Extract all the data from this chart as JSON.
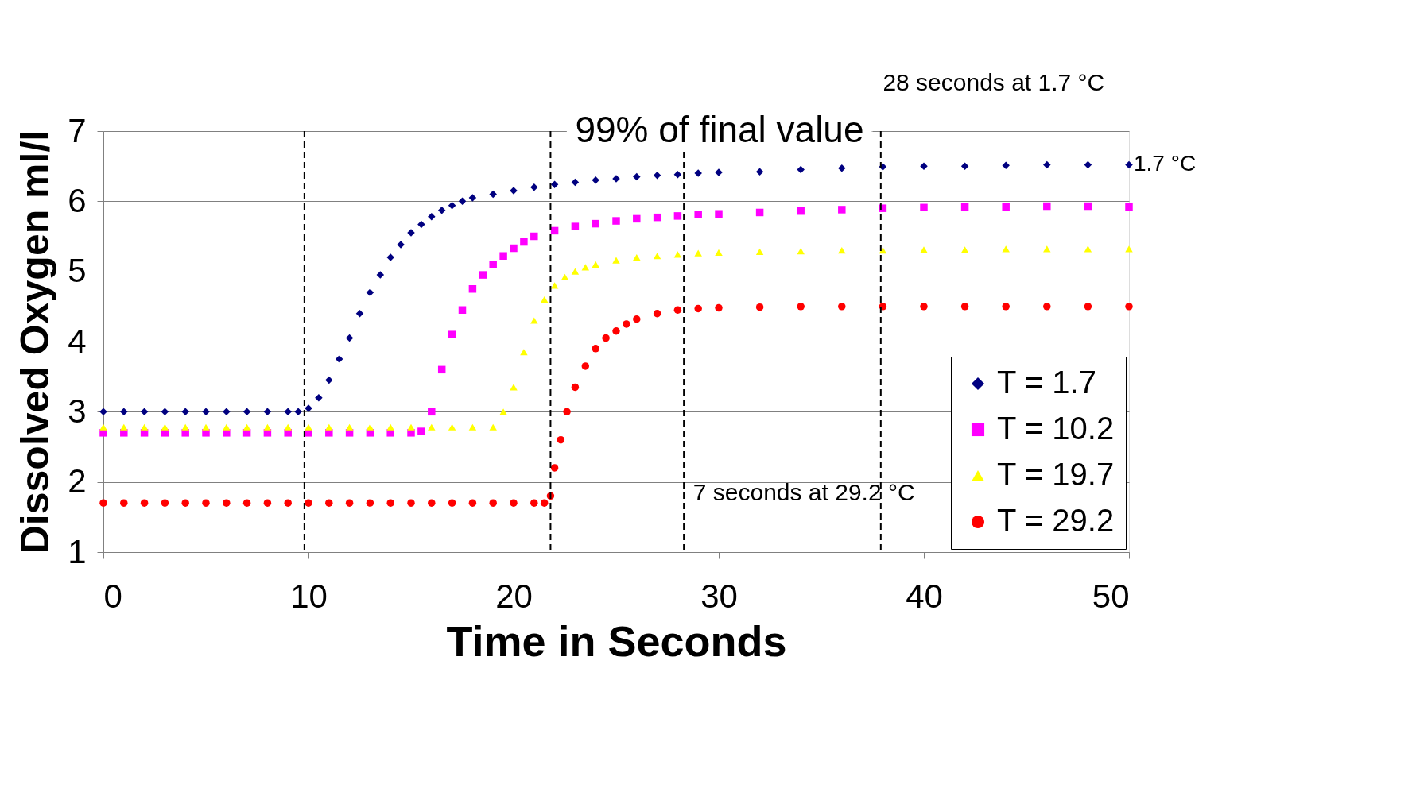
{
  "chart_data": {
    "type": "scatter",
    "xlabel": "Time in Seconds",
    "ylabel": "Dissolved Oxygen ml/l",
    "xlim": [
      0,
      50
    ],
    "xticks": [
      0,
      10,
      20,
      30,
      40,
      50
    ],
    "ylim": [
      1,
      7
    ],
    "yticks": [
      1,
      2,
      3,
      4,
      5,
      6,
      7
    ],
    "grid": "y",
    "legend": "bottom right",
    "series": [
      {
        "name": "T = 1.7",
        "color": "#000080",
        "marker": "diamond",
        "x": [
          0,
          1,
          2,
          3,
          4,
          5,
          6,
          7,
          8,
          9,
          9.5,
          10,
          10.5,
          11,
          11.5,
          12,
          12.5,
          13,
          13.5,
          14,
          14.5,
          15,
          15.5,
          16,
          16.5,
          17,
          17.5,
          18,
          19,
          20,
          21,
          22,
          23,
          24,
          25,
          26,
          27,
          28,
          29,
          30,
          32,
          34,
          36,
          38,
          40,
          42,
          44,
          46,
          48,
          50
        ],
        "values": [
          3.0,
          3.0,
          3.0,
          3.0,
          3.0,
          3.0,
          3.0,
          3.0,
          3.0,
          3.0,
          3.0,
          3.05,
          3.2,
          3.45,
          3.75,
          4.05,
          4.4,
          4.7,
          4.95,
          5.2,
          5.38,
          5.55,
          5.67,
          5.78,
          5.87,
          5.94,
          6.0,
          6.05,
          6.1,
          6.15,
          6.2,
          6.24,
          6.27,
          6.3,
          6.32,
          6.35,
          6.37,
          6.38,
          6.4,
          6.41,
          6.42,
          6.45,
          6.47,
          6.49,
          6.5,
          6.5,
          6.51,
          6.52,
          6.52,
          6.52
        ]
      },
      {
        "name": "T = 10.2",
        "color": "#ff00ff",
        "marker": "square",
        "x": [
          0,
          1,
          2,
          3,
          4,
          5,
          6,
          7,
          8,
          9,
          10,
          11,
          12,
          13,
          14,
          15,
          15.5,
          16,
          16.5,
          17,
          17.5,
          18,
          18.5,
          19,
          19.5,
          20,
          20.5,
          21,
          22,
          23,
          24,
          25,
          26,
          27,
          28,
          29,
          30,
          32,
          34,
          36,
          38,
          40,
          42,
          44,
          46,
          48,
          50
        ],
        "values": [
          2.7,
          2.7,
          2.7,
          2.7,
          2.7,
          2.7,
          2.7,
          2.7,
          2.7,
          2.7,
          2.7,
          2.7,
          2.7,
          2.7,
          2.7,
          2.7,
          2.72,
          3.0,
          3.6,
          4.1,
          4.45,
          4.75,
          4.95,
          5.1,
          5.22,
          5.33,
          5.42,
          5.5,
          5.58,
          5.64,
          5.68,
          5.72,
          5.75,
          5.77,
          5.79,
          5.81,
          5.82,
          5.84,
          5.86,
          5.88,
          5.9,
          5.91,
          5.92,
          5.92,
          5.93,
          5.93,
          5.92
        ]
      },
      {
        "name": "T = 19.7",
        "color": "#ffff00",
        "marker": "triangle",
        "x": [
          0,
          1,
          2,
          3,
          4,
          5,
          6,
          7,
          8,
          9,
          10,
          11,
          12,
          13,
          14,
          15,
          16,
          17,
          18,
          19,
          19.5,
          20,
          20.5,
          21,
          21.5,
          22,
          22.5,
          23,
          23.5,
          24,
          25,
          26,
          27,
          28,
          29,
          30,
          32,
          34,
          36,
          38,
          40,
          42,
          44,
          46,
          48,
          50
        ],
        "values": [
          2.78,
          2.78,
          2.78,
          2.78,
          2.78,
          2.78,
          2.78,
          2.78,
          2.78,
          2.78,
          2.78,
          2.78,
          2.78,
          2.78,
          2.78,
          2.78,
          2.78,
          2.78,
          2.78,
          2.78,
          3.0,
          3.35,
          3.85,
          4.3,
          4.6,
          4.8,
          4.92,
          5.0,
          5.06,
          5.1,
          5.16,
          5.2,
          5.22,
          5.24,
          5.26,
          5.27,
          5.28,
          5.29,
          5.3,
          5.3,
          5.31,
          5.31,
          5.32,
          5.32,
          5.32,
          5.32
        ]
      },
      {
        "name": "T = 29.2",
        "color": "#ff0000",
        "marker": "circle",
        "x": [
          0,
          1,
          2,
          3,
          4,
          5,
          6,
          7,
          8,
          9,
          10,
          11,
          12,
          13,
          14,
          15,
          16,
          17,
          18,
          19,
          20,
          21,
          21.5,
          21.8,
          22,
          22.3,
          22.6,
          23,
          23.5,
          24,
          24.5,
          25,
          25.5,
          26,
          27,
          28,
          29,
          30,
          32,
          34,
          36,
          38,
          40,
          42,
          44,
          46,
          48,
          50
        ],
        "values": [
          1.7,
          1.7,
          1.7,
          1.7,
          1.7,
          1.7,
          1.7,
          1.7,
          1.7,
          1.7,
          1.7,
          1.7,
          1.7,
          1.7,
          1.7,
          1.7,
          1.7,
          1.7,
          1.7,
          1.7,
          1.7,
          1.7,
          1.7,
          1.8,
          2.2,
          2.6,
          3.0,
          3.35,
          3.65,
          3.9,
          4.05,
          4.15,
          4.25,
          4.32,
          4.4,
          4.45,
          4.47,
          4.48,
          4.49,
          4.5,
          4.5,
          4.5,
          4.5,
          4.5,
          4.5,
          4.5,
          4.5,
          4.5
        ]
      }
    ],
    "ref_lines": [
      {
        "axis": "x",
        "value": 9.8,
        "color": "#000000",
        "line_style": "dashed"
      },
      {
        "axis": "x",
        "value": 37.9,
        "color": "#000000",
        "line_style": "dashed"
      },
      {
        "axis": "x",
        "value": 21.8,
        "color": "#000000",
        "line_style": "dashed"
      },
      {
        "axis": "x",
        "value": 28.3,
        "color": "#000000",
        "line_style": "dashed"
      }
    ],
    "annotations": [
      "28 seconds at 1.7 °C",
      "99% of final value",
      "7 seconds at 29.2 °C",
      {
        "text": "1.7 °C",
        "x": 50,
        "y": 6.52
      }
    ]
  }
}
